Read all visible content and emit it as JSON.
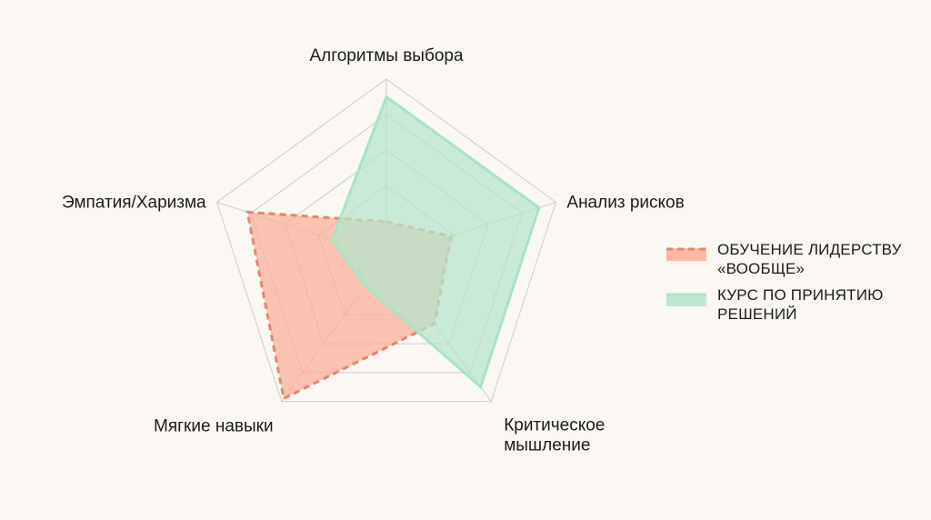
{
  "chart_data": {
    "type": "radar",
    "axes": [
      "Алгоритмы выбора",
      "Анализ рисков",
      "Критическое мышление",
      "Мягкие навыки",
      "Эмпатия/Харизма"
    ],
    "axis_label_lines": [
      [
        "Алгоритмы выбора"
      ],
      [
        "Анализ рисков"
      ],
      [
        "Критическое",
        "мышление"
      ],
      [
        "Мягкие навыки"
      ],
      [
        "Эмпатия/Харизма"
      ]
    ],
    "rlim": [
      0,
      5
    ],
    "grid_levels": 5,
    "grid": true,
    "legend_position": "right",
    "series": [
      {
        "name": "ОБУЧЕНИЕ ЛИДЕРСТВУ «ВООБЩЕ»",
        "legend_lines": [
          "ОБУЧЕНИЕ ЛИДЕРСТВУ",
          "«ВООБЩЕ»"
        ],
        "values": [
          1.0,
          1.9,
          2.3,
          4.9,
          4.1
        ],
        "stroke": "#e8846c",
        "fill": "#fbad98",
        "dashed": true
      },
      {
        "name": "КУРС ПО ПРИНЯТИЮ РЕШЕНИЙ",
        "legend_lines": [
          "КУРС ПО ПРИНЯТИЮ",
          "РЕШЕНИЙ"
        ],
        "values": [
          4.5,
          4.5,
          4.5,
          1.0,
          1.6
        ],
        "stroke": "#a7e4c4",
        "fill": "#b4e5cb",
        "dashed": false
      }
    ]
  }
}
